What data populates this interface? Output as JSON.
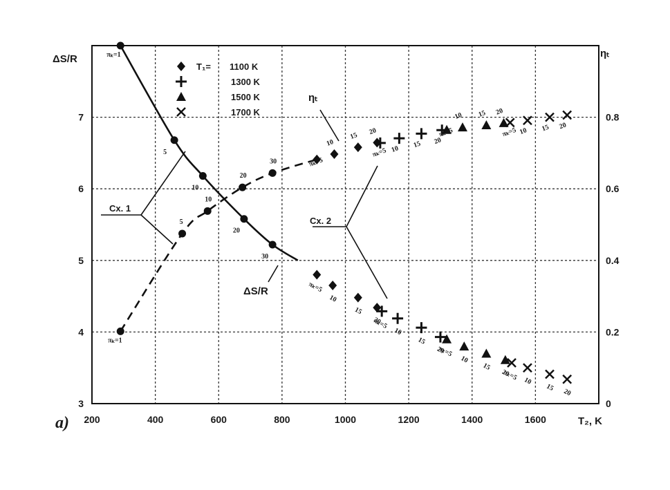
{
  "chart_data": {
    "type": "scatter",
    "panel_label": "a)",
    "xlabel": "T₂, K",
    "ylabel_left": "ΔS/R",
    "ylabel_right": "ηₜ",
    "xlim": [
      200,
      1800
    ],
    "ylim_left": [
      3,
      8
    ],
    "ylim_right": [
      0,
      1.0
    ],
    "x_ticks": [
      "200",
      "400",
      "600",
      "800",
      "1000",
      "1200",
      "1400",
      "1600"
    ],
    "y_left_ticks": [
      "3",
      "4",
      "5",
      "6",
      "7"
    ],
    "y_right_ticks": [
      "0",
      "0.2",
      "0.4",
      "0.6",
      "0.8"
    ],
    "grid": true,
    "legend": {
      "placement": "top-left",
      "prefix": "T₁=",
      "entries": [
        "1100 K",
        "1300 K",
        "1500 K",
        "1700 K"
      ]
    },
    "series": [
      {
        "name": "1100 K",
        "marker": "diamond",
        "delta_s": [
          {
            "x": 910,
            "y": 4.8,
            "label": "πₖ=5"
          },
          {
            "x": 960,
            "y": 4.65,
            "label": "10"
          },
          {
            "x": 1040,
            "y": 4.48,
            "label": "15"
          },
          {
            "x": 1100,
            "y": 4.34,
            "label": "20"
          }
        ],
        "eta": [
          {
            "x": 910,
            "y": 0.682,
            "label": "πₖ=5"
          },
          {
            "x": 965,
            "y": 0.697,
            "label": "10"
          },
          {
            "x": 1040,
            "y": 0.716,
            "label": "15"
          },
          {
            "x": 1100,
            "y": 0.729,
            "label": "20"
          }
        ]
      },
      {
        "name": "1300 K",
        "marker": "plus",
        "delta_s": [
          {
            "x": 1115,
            "y": 4.29,
            "label": "πₖ=5"
          },
          {
            "x": 1165,
            "y": 4.19,
            "label": "10"
          },
          {
            "x": 1240,
            "y": 4.06,
            "label": "15"
          },
          {
            "x": 1300,
            "y": 3.93,
            "label": "20"
          }
        ],
        "eta": [
          {
            "x": 1110,
            "y": 0.728,
            "label": "πₖ=5"
          },
          {
            "x": 1170,
            "y": 0.741,
            "label": "10"
          },
          {
            "x": 1240,
            "y": 0.754,
            "label": "15"
          },
          {
            "x": 1305,
            "y": 0.764,
            "label": "20"
          }
        ]
      },
      {
        "name": "1500 K",
        "marker": "triangle",
        "delta_s": [
          {
            "x": 1320,
            "y": 3.9,
            "label": "πₖ=5"
          },
          {
            "x": 1375,
            "y": 3.8,
            "label": "10"
          },
          {
            "x": 1445,
            "y": 3.7,
            "label": "15"
          },
          {
            "x": 1505,
            "y": 3.61,
            "label": "20"
          }
        ],
        "eta": [
          {
            "x": 1320,
            "y": 0.765,
            "label": "πₖ=5"
          },
          {
            "x": 1370,
            "y": 0.772,
            "label": "10"
          },
          {
            "x": 1445,
            "y": 0.778,
            "label": "15"
          },
          {
            "x": 1500,
            "y": 0.784,
            "label": "20"
          }
        ]
      },
      {
        "name": "1700 K",
        "marker": "cross",
        "delta_s": [
          {
            "x": 1525,
            "y": 3.57,
            "label": "πₖ=5"
          },
          {
            "x": 1575,
            "y": 3.5,
            "label": "10"
          },
          {
            "x": 1645,
            "y": 3.41,
            "label": "15"
          },
          {
            "x": 1700,
            "y": 3.34,
            "label": "20"
          }
        ],
        "eta": [
          {
            "x": 1520,
            "y": 0.785,
            "label": "πₖ=5"
          },
          {
            "x": 1575,
            "y": 0.791,
            "label": "10"
          },
          {
            "x": 1645,
            "y": 0.8,
            "label": "15"
          },
          {
            "x": 1700,
            "y": 0.806,
            "label": "20"
          }
        ]
      }
    ],
    "cycle1": {
      "name": "Cx. 1",
      "delta_s_curve": {
        "label": "ΔS/R",
        "points": [
          {
            "x": 290,
            "y": 8.0,
            "label": "πₖ=1"
          },
          {
            "x": 460,
            "y": 6.68,
            "label": "5"
          },
          {
            "x": 550,
            "y": 6.18,
            "label": "10"
          },
          {
            "x": 680,
            "y": 5.58,
            "label": "20"
          },
          {
            "x": 770,
            "y": 5.22,
            "label": "30"
          }
        ],
        "curve_end": [
          850,
          5.0
        ]
      },
      "eta_curve": {
        "label": "ηₜ",
        "points": [
          {
            "x": 290,
            "y": 0.202,
            "label": "πₖ=1"
          },
          {
            "x": 485,
            "y": 0.475,
            "label": "5"
          },
          {
            "x": 565,
            "y": 0.538,
            "label": "10"
          },
          {
            "x": 675,
            "y": 0.604,
            "label": "20"
          },
          {
            "x": 770,
            "y": 0.644,
            "label": "30"
          }
        ]
      }
    },
    "cycle2": {
      "name": "Cx. 2"
    }
  }
}
